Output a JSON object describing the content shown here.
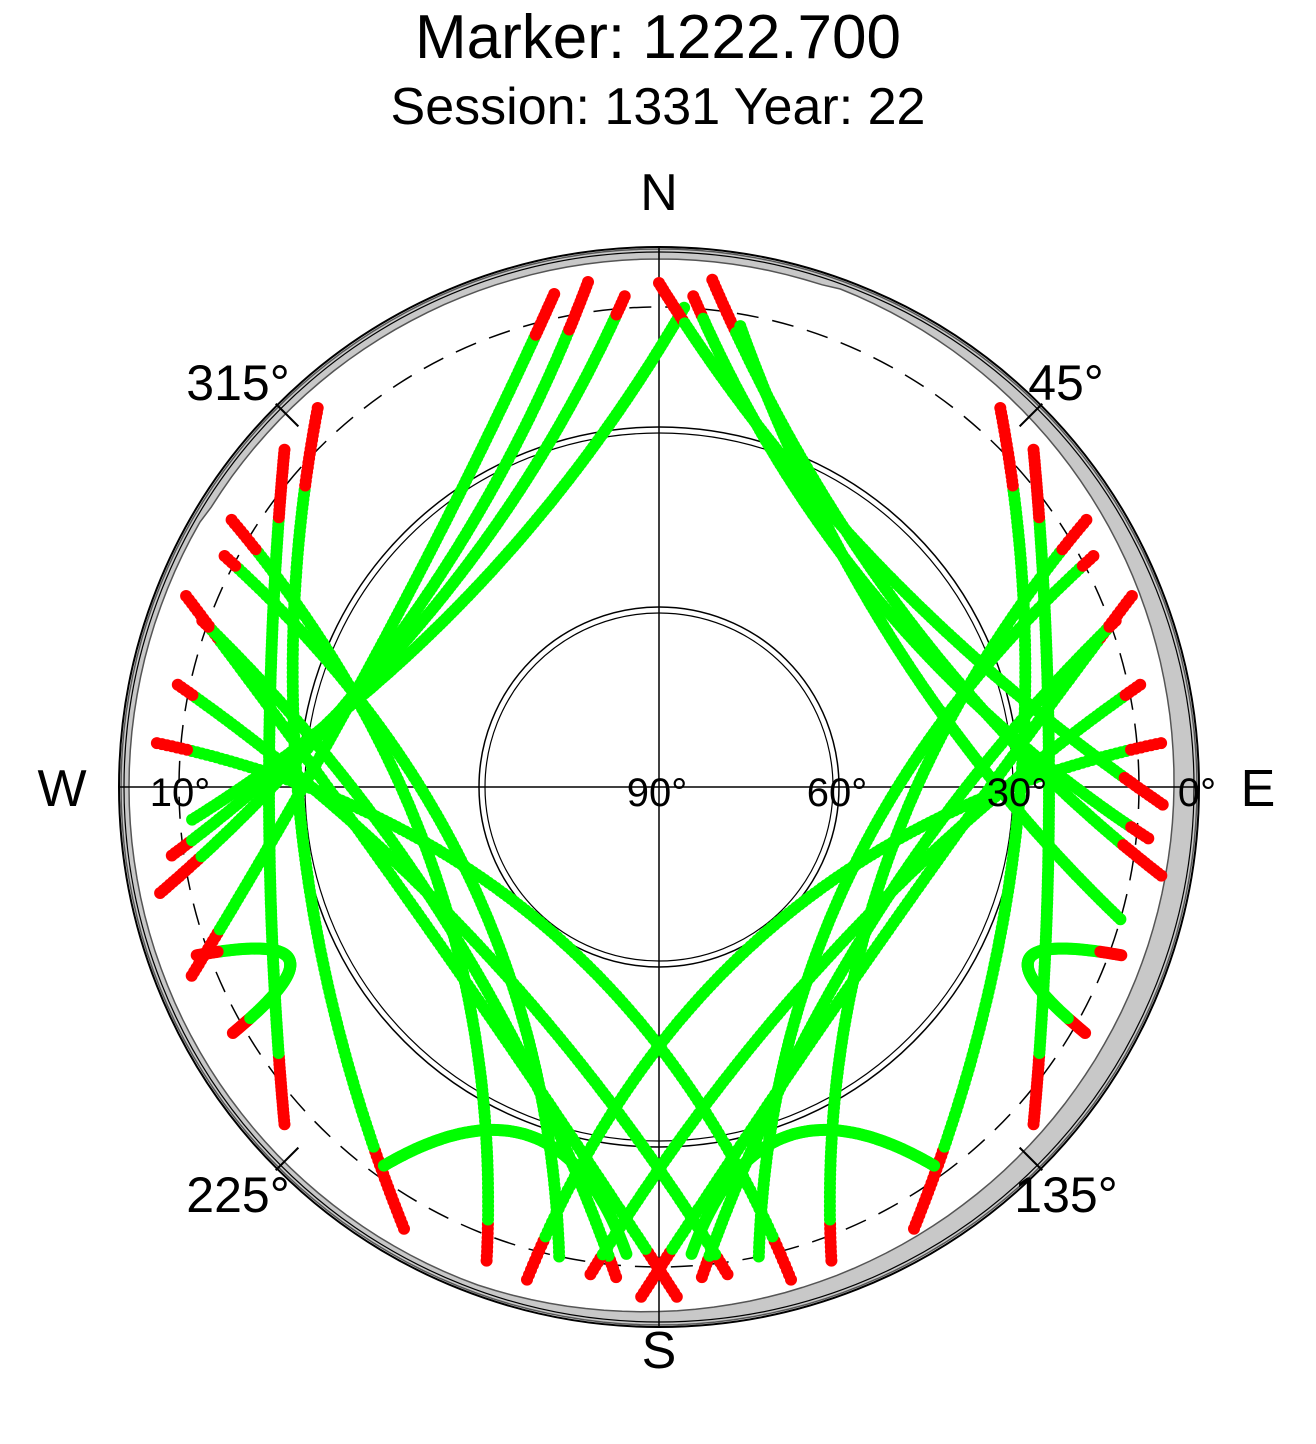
{
  "chart_data": {
    "type": "scatter",
    "subtype": "polar-skyplot",
    "title": "Marker: 1222.700",
    "subtitle": "Session: 1331 Year: 22",
    "direction_labels": {
      "north": "N",
      "south": "S",
      "east": "E",
      "west": "W"
    },
    "azimuth_ticks": [
      {
        "azimuth": 45,
        "label": "45°"
      },
      {
        "azimuth": 135,
        "label": "135°"
      },
      {
        "azimuth": 225,
        "label": "225°"
      },
      {
        "azimuth": 315,
        "label": "315°"
      }
    ],
    "elevation_ticks": [
      {
        "elevation": 90,
        "label": "90°"
      },
      {
        "elevation": 60,
        "label": "60°"
      },
      {
        "elevation": 30,
        "label": "30°"
      },
      {
        "elevation": 0,
        "label": "0°"
      },
      {
        "elevation": 10,
        "label": "10°"
      }
    ],
    "elevation_range": [
      0,
      90
    ],
    "elevation_circles": [
      30,
      60
    ],
    "cutoff_elevation": 10,
    "colors": {
      "valid": "#00ff00",
      "low": "#ff0000",
      "horizon_mask": "#c8c8c8",
      "grid": "#000000"
    },
    "tracks": [
      {
        "start": [
          258,
          5
        ],
        "peak": [
          305,
          40
        ],
        "end": [
          352,
          5
        ]
      },
      {
        "start": [
          262,
          8
        ],
        "peak": [
          310,
          42
        ],
        "end": [
          356,
          8
        ]
      },
      {
        "start": [
          266,
          12
        ],
        "peak": [
          315,
          45
        ],
        "end": [
          3,
          10
        ]
      },
      {
        "start": [
          248,
          6
        ],
        "peak": [
          300,
          38
        ],
        "end": [
          348,
          6
        ]
      },
      {
        "start": [
          6,
          5
        ],
        "peak": [
          55,
          40
        ],
        "end": [
          100,
          5
        ]
      },
      {
        "start": [
          4,
          8
        ],
        "peak": [
          50,
          42
        ],
        "end": [
          96,
          8
        ]
      },
      {
        "start": [
          10,
          12
        ],
        "peak": [
          60,
          44
        ],
        "end": [
          106,
          10
        ]
      },
      {
        "start": [
          0,
          6
        ],
        "peak": [
          45,
          38
        ],
        "end": [
          92,
          6
        ]
      },
      {
        "start": [
          178,
          5
        ],
        "peak": [
          235,
          45
        ],
        "end": [
          292,
          5
        ]
      },
      {
        "start": [
          185,
          8
        ],
        "peak": [
          238,
          48
        ],
        "end": [
          290,
          9
        ]
      },
      {
        "start": [
          172,
          8
        ],
        "peak": [
          228,
          50
        ],
        "end": [
          282,
          8
        ]
      },
      {
        "start": [
          192,
          10
        ],
        "peak": [
          245,
          55
        ],
        "end": [
          298,
          8
        ]
      },
      {
        "start": [
          165,
          5
        ],
        "peak": [
          220,
          60
        ],
        "end": [
          275,
          6
        ]
      },
      {
        "start": [
          200,
          6
        ],
        "peak": [
          250,
          50
        ],
        "end": [
          302,
          6
        ]
      },
      {
        "start": [
          182,
          5
        ],
        "peak": [
          125,
          45
        ],
        "end": [
          68,
          5
        ]
      },
      {
        "start": [
          175,
          8
        ],
        "peak": [
          122,
          48
        ],
        "end": [
          70,
          9
        ]
      },
      {
        "start": [
          188,
          8
        ],
        "peak": [
          132,
          50
        ],
        "end": [
          78,
          8
        ]
      },
      {
        "start": [
          168,
          10
        ],
        "peak": [
          115,
          55
        ],
        "end": [
          62,
          8
        ]
      },
      {
        "start": [
          195,
          5
        ],
        "peak": [
          140,
          60
        ],
        "end": [
          85,
          6
        ]
      },
      {
        "start": [
          160,
          6
        ],
        "peak": [
          110,
          50
        ],
        "end": [
          58,
          6
        ]
      },
      {
        "start": [
          210,
          5
        ],
        "peak": [
          265,
          30
        ],
        "end": [
          318,
          5
        ]
      },
      {
        "start": [
          150,
          5
        ],
        "peak": [
          95,
          30
        ],
        "end": [
          42,
          5
        ]
      },
      {
        "start": [
          228,
          6
        ],
        "peak": [
          270,
          25
        ],
        "end": [
          312,
          6
        ]
      },
      {
        "start": [
          132,
          6
        ],
        "peak": [
          90,
          25
        ],
        "end": [
          48,
          6
        ]
      },
      {
        "start": [
          216,
          12
        ],
        "peak": [
          200,
          28
        ],
        "end": [
          184,
          12
        ]
      },
      {
        "start": [
          144,
          12
        ],
        "peak": [
          160,
          28
        ],
        "end": [
          176,
          12
        ]
      },
      {
        "start": [
          240,
          8
        ],
        "peak": [
          245,
          22
        ],
        "end": [
          250,
          8
        ]
      },
      {
        "start": [
          120,
          8
        ],
        "peak": [
          115,
          22
        ],
        "end": [
          110,
          8
        ]
      }
    ]
  }
}
